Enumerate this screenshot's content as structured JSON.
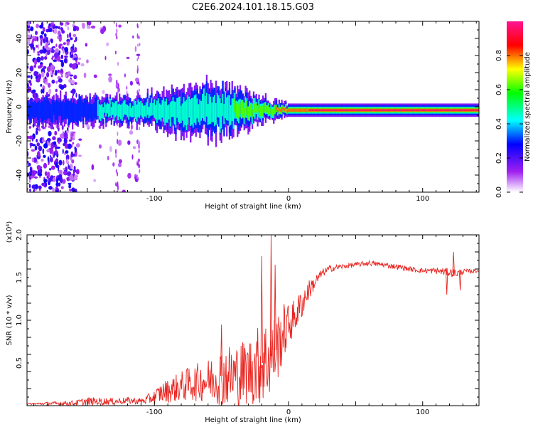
{
  "title": "C2E6.2024.101.18.15.G03",
  "chart_data": [
    {
      "type": "heatmap",
      "xlabel": "Height of straight line (km)",
      "ylabel": "Frequency (Hz)",
      "xlim": [
        -195,
        142
      ],
      "ylim": [
        -50,
        50
      ],
      "xticks": [
        -100,
        0,
        100
      ],
      "yticks": [
        -40,
        -20,
        0,
        20,
        40
      ],
      "xtick_labels": [
        "-100",
        "0",
        "100"
      ],
      "ytick_labels": [
        "-40",
        "-20",
        "0",
        "20",
        "40"
      ],
      "colorbar": {
        "label": "Normalized spectral amplitude",
        "range": [
          0,
          1
        ],
        "ticks": [
          0.0,
          0.2,
          0.4,
          0.6,
          0.8
        ],
        "tick_labels": [
          "0.0",
          "0.2",
          "0.4",
          "0.6",
          "0.8"
        ],
        "colors": [
          "#ffffff",
          "#a020f0",
          "#0000ff",
          "#00ffff",
          "#00ff00",
          "#ffff00",
          "#ff0000",
          "#ff1493"
        ]
      },
      "band": {
        "center_hz": -2,
        "halfwidth_hz": [
          [
            -160,
            3
          ],
          [
            -110,
            3
          ],
          [
            -80,
            5
          ],
          [
            -50,
            6
          ],
          [
            -30,
            4
          ],
          [
            -10,
            2
          ],
          [
            0,
            1.5
          ],
          [
            142,
            1.5
          ]
        ],
        "peak_level": [
          [
            -195,
            0.3
          ],
          [
            -160,
            0.4
          ],
          [
            -100,
            0.5
          ],
          [
            -50,
            0.55
          ],
          [
            -20,
            0.7
          ],
          [
            0,
            0.85
          ],
          [
            20,
            0.95
          ],
          [
            142,
            0.95
          ]
        ]
      },
      "noise_regions": [
        {
          "x_range": [
            -195,
            -158
          ],
          "level": "high"
        },
        {
          "x_range": [
            -158,
            -110
          ],
          "level": "low"
        }
      ]
    },
    {
      "type": "line",
      "xlabel": "Height of straight line (km)",
      "ylabel": "SNR (10 * v/v)",
      "y_multiplier_label": "(x10⁴)",
      "xlim": [
        -195,
        142
      ],
      "ylim": [
        0,
        2.0
      ],
      "xticks": [
        -100,
        0,
        100
      ],
      "yticks": [
        0.5,
        1.0,
        1.5,
        2.0
      ],
      "xtick_labels": [
        "-100",
        "0",
        "100"
      ],
      "ytick_labels": [
        "0.5",
        "1.0",
        "1.5",
        "2.0"
      ],
      "color": "#e8231e",
      "envelope": {
        "x": [
          -195,
          -160,
          -150,
          -130,
          -120,
          -110,
          -100,
          -95,
          -85,
          -75,
          -60,
          -50,
          -40,
          -30,
          -25,
          -20,
          -15,
          -12,
          -8,
          -4,
          0,
          5,
          10,
          15,
          20,
          25,
          30,
          40,
          50,
          60,
          70,
          80,
          90,
          100,
          110,
          120,
          125,
          130,
          142
        ],
        "mean": [
          0.02,
          0.03,
          0.05,
          0.05,
          0.06,
          0.05,
          0.1,
          0.15,
          0.2,
          0.25,
          0.3,
          0.35,
          0.35,
          0.4,
          0.45,
          0.5,
          0.55,
          0.6,
          0.7,
          0.85,
          0.95,
          1.05,
          1.2,
          1.35,
          1.45,
          1.55,
          1.6,
          1.63,
          1.65,
          1.67,
          1.65,
          1.63,
          1.6,
          1.58,
          1.58,
          1.56,
          1.55,
          1.57,
          1.58
        ],
        "spread": [
          0.01,
          0.03,
          0.05,
          0.04,
          0.04,
          0.04,
          0.08,
          0.12,
          0.16,
          0.2,
          0.25,
          0.35,
          0.4,
          0.4,
          0.45,
          0.5,
          0.5,
          0.45,
          0.4,
          0.35,
          0.25,
          0.2,
          0.18,
          0.12,
          0.08,
          0.05,
          0.04,
          0.03,
          0.03,
          0.03,
          0.03,
          0.03,
          0.03,
          0.03,
          0.04,
          0.05,
          0.05,
          0.03,
          0.02
        ]
      },
      "spikes": [
        [
          -13,
          2.0
        ],
        [
          -20,
          1.75
        ],
        [
          -10,
          1.65
        ],
        [
          -50,
          0.95
        ],
        [
          123,
          1.8
        ],
        [
          118,
          1.3
        ],
        [
          128,
          1.35
        ]
      ]
    }
  ]
}
